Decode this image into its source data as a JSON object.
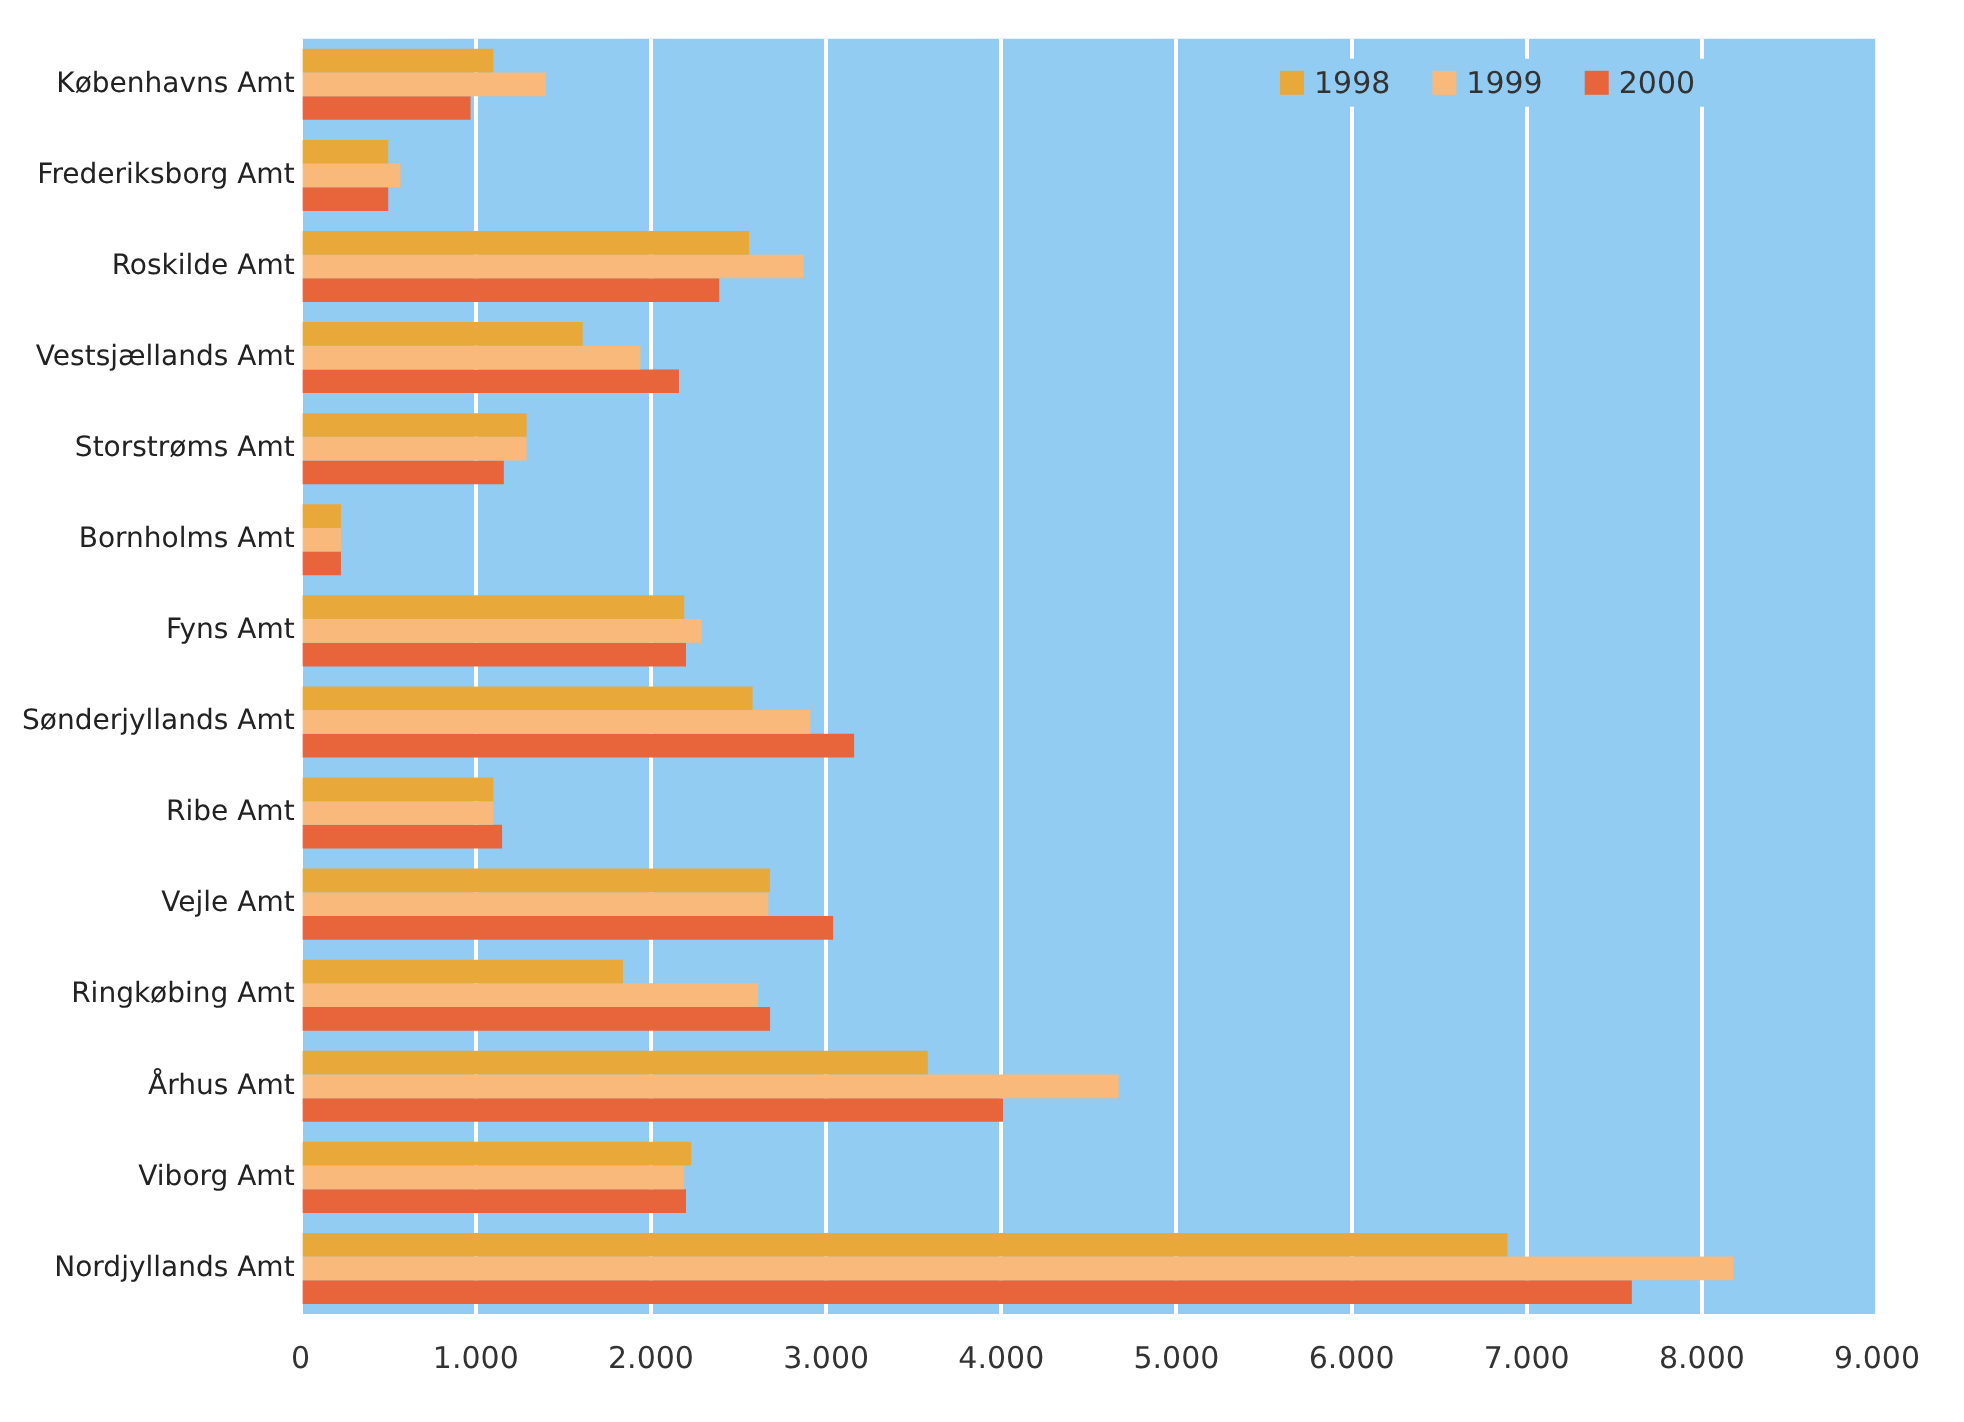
{
  "chart_data": {
    "type": "bar",
    "orientation": "horizontal",
    "categories": [
      "Københavns Amt",
      "Frederiksborg Amt",
      "Roskilde Amt",
      "Vestsjællands Amt",
      "Storstrøms Amt",
      "Bornholms Amt",
      "Fyns Amt",
      "Sønderjyllands Amt",
      "Ribe Amt",
      "Vejle Amt",
      "Ringkøbing Amt",
      "Århus Amt",
      "Viborg Amt",
      "Nordjyllands Amt"
    ],
    "series": [
      {
        "name": "1998",
        "color": "#e8a93a",
        "values": [
          1100,
          500,
          2560,
          1610,
          1290,
          230,
          2190,
          2580,
          1100,
          2680,
          1840,
          3580,
          2230,
          6890
        ]
      },
      {
        "name": "1999",
        "color": "#f9b97a",
        "values": [
          1400,
          570,
          2870,
          1940,
          1290,
          230,
          2290,
          2910,
          1100,
          2670,
          2610,
          4670,
          2190,
          8180
        ]
      },
      {
        "name": "2000",
        "color": "#e8643a",
        "values": [
          970,
          500,
          2390,
          2160,
          1160,
          230,
          2200,
          3160,
          1150,
          3040,
          2680,
          4010,
          2200,
          7600
        ]
      }
    ],
    "xlim": [
      0,
      9000
    ],
    "xticks": [
      0,
      {
        "value": 1000,
        "label": "1.000"
      },
      {
        "value": 2000,
        "label": "2.000"
      },
      {
        "value": 3000,
        "label": "3.000"
      },
      {
        "value": 4000,
        "label": "4.000"
      },
      {
        "value": 5000,
        "label": "5.000"
      },
      {
        "value": 6000,
        "label": "6.000"
      },
      {
        "value": 7000,
        "label": "7.000"
      },
      {
        "value": 8000,
        "label": "8.000"
      },
      {
        "value": 9000,
        "label": "9.000"
      }
    ],
    "grid": "x",
    "legend": "top right"
  }
}
